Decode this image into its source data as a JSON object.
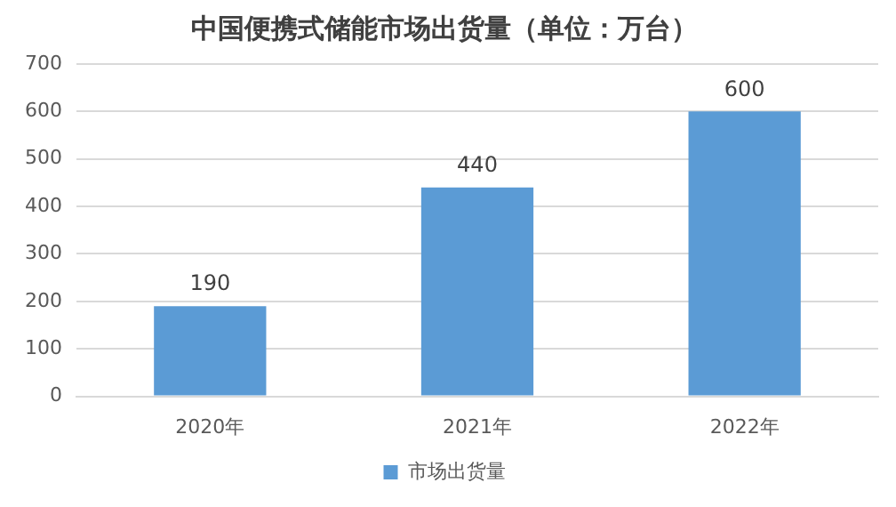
{
  "chart_data": {
    "type": "bar",
    "title": "中国便携式储能市场出货量（单位：万台）",
    "categories": [
      "2020年",
      "2021年",
      "2022年"
    ],
    "series": [
      {
        "name": "市场出货量",
        "color": "#5b9bd5",
        "values": [
          190,
          440,
          600
        ]
      }
    ],
    "ylim": [
      0,
      700
    ],
    "yticks": [
      0,
      100,
      200,
      300,
      400,
      500,
      600,
      700
    ],
    "grid": "y",
    "legend": "bottom",
    "data_labels": true
  }
}
